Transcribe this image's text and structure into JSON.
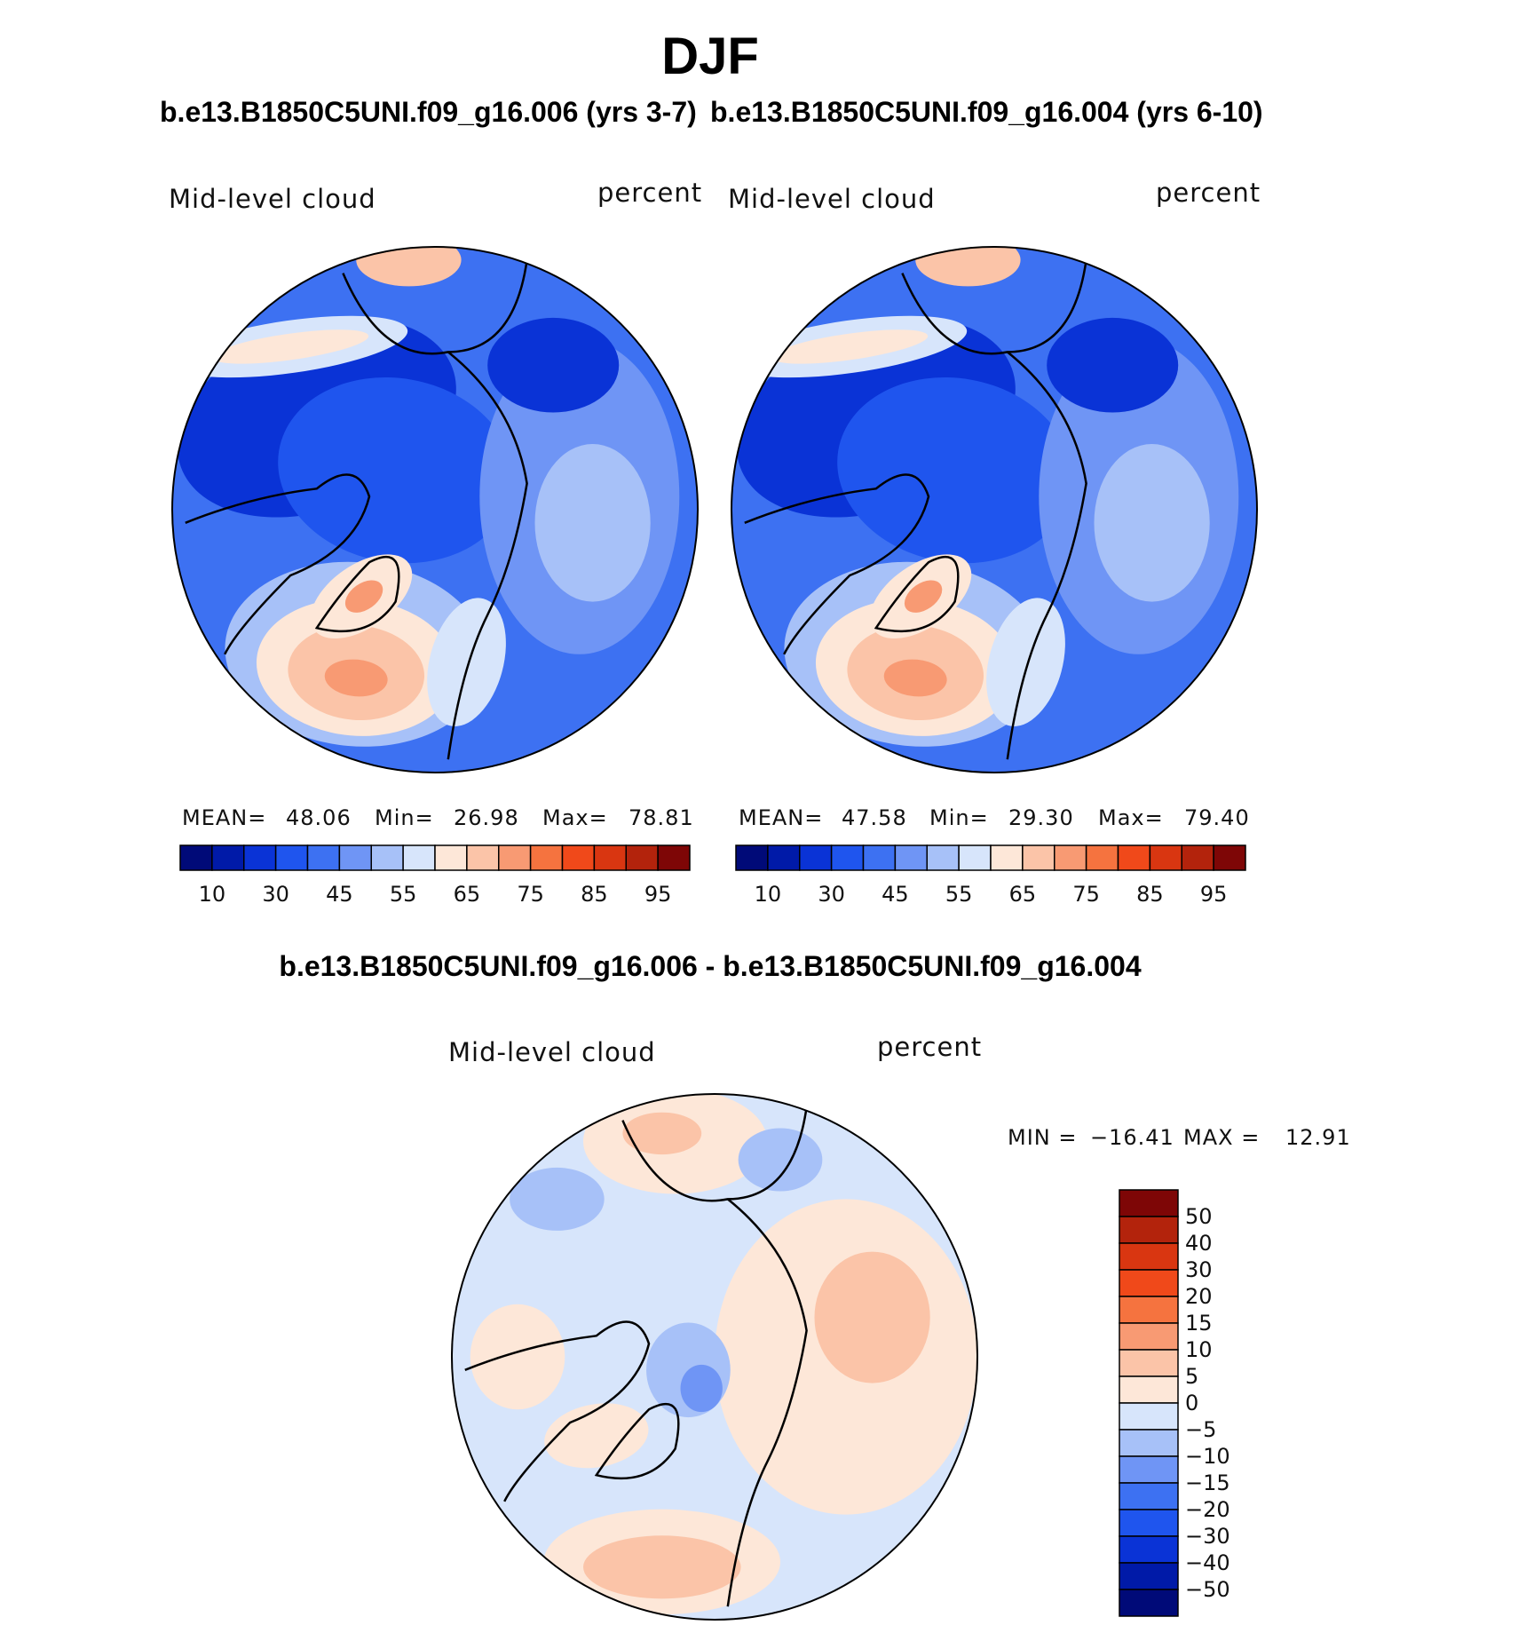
{
  "header": {
    "title": "DJF",
    "subtitle_left": "b.e13.B1850C5UNI.f09_g16.006 (yrs 3-7)",
    "subtitle_right": "b.e13.B1850C5UNI.f09_g16.004 (yrs 6-10)",
    "diff_title": "b.e13.B1850C5UNI.f09_g16.006 - b.e13.B1850C5UNI.f09_g16.004"
  },
  "colors": {
    "seq_palette": [
      "#000a78",
      "#001aa8",
      "#0a33d6",
      "#1f55ee",
      "#3d71f2",
      "#6f95f5",
      "#a7c1f8",
      "#d7e5fb",
      "#fde7d8",
      "#fbc4a8",
      "#f89a73",
      "#f5733f",
      "#f0491a",
      "#d93611",
      "#b3230c",
      "#7e0606"
    ],
    "diff_palette": [
      "#000a78",
      "#001aa8",
      "#0a33d6",
      "#1f55ee",
      "#3d71f2",
      "#6f95f5",
      "#a7c1f8",
      "#d7e5fb",
      "#fde7d8",
      "#fbc4a8",
      "#f89a73",
      "#f5733f",
      "#f0491a",
      "#d93611",
      "#b3230c",
      "#7e0606"
    ]
  },
  "chart_data": [
    {
      "type": "heatmap",
      "name": "panel-left",
      "projection": "north-polar-stereographic",
      "label_left": "Mid-level cloud",
      "label_right": "percent",
      "stats": {
        "mean_label": "MEAN=",
        "mean": "48.06",
        "min_label": "Min=",
        "min": "26.98",
        "max_label": "Max=",
        "max": "78.81"
      },
      "colorbar_ticks": [
        "10",
        "30",
        "45",
        "55",
        "65",
        "75",
        "85",
        "95"
      ],
      "fill_level": 30
    },
    {
      "type": "heatmap",
      "name": "panel-right",
      "projection": "north-polar-stereographic",
      "label_left": "Mid-level cloud",
      "label_right": "percent",
      "stats": {
        "mean_label": "MEAN=",
        "mean": "47.58",
        "min_label": "Min=",
        "min": "29.30",
        "max_label": "Max=",
        "max": "79.40"
      },
      "colorbar_ticks": [
        "10",
        "30",
        "45",
        "55",
        "65",
        "75",
        "85",
        "95"
      ],
      "fill_level": 35
    },
    {
      "type": "heatmap",
      "name": "panel-diff",
      "projection": "north-polar-stereographic",
      "label_left": "Mid-level cloud",
      "label_right": "percent",
      "stats": {
        "min_label": "MIN =",
        "min": "−16.41",
        "max_label": "MAX =",
        "max": "12.91"
      },
      "colorbar_ticks": [
        "50",
        "40",
        "30",
        "20",
        "15",
        "10",
        "5",
        "0",
        "−5",
        "−10",
        "−15",
        "−20",
        "−30",
        "−40",
        "−50"
      ],
      "fill_level": 0
    }
  ]
}
